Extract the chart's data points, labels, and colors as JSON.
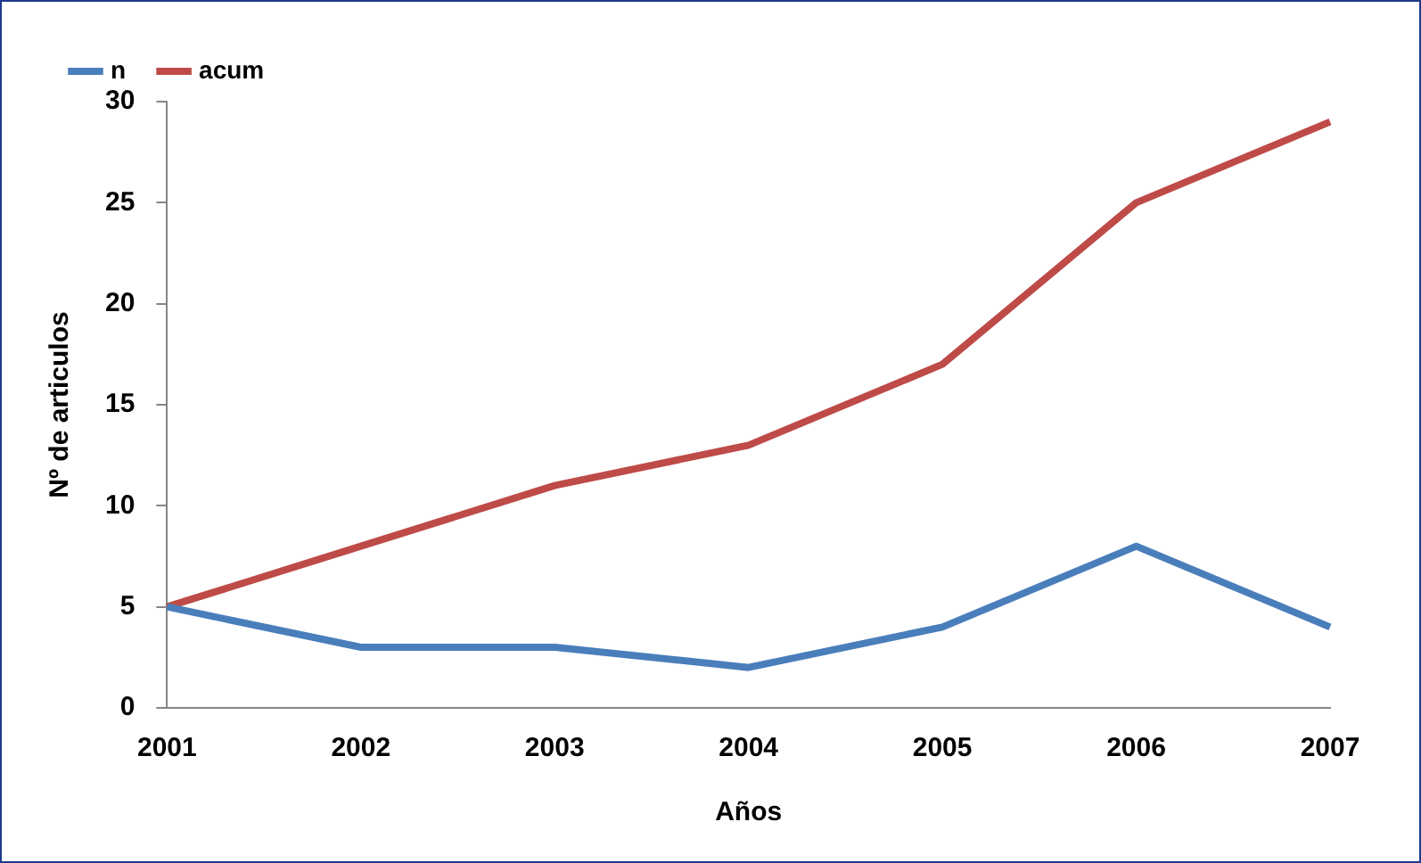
{
  "chart_data": {
    "type": "line",
    "xlabel": "Años",
    "ylabel": "Nº de articulos",
    "categories": [
      "2001",
      "2002",
      "2003",
      "2004",
      "2005",
      "2006",
      "2007"
    ],
    "series": [
      {
        "name": "n",
        "color": "#4a7ebb",
        "values": [
          5,
          3,
          3,
          2,
          4,
          8,
          4
        ]
      },
      {
        "name": "acum",
        "color": "#be4b48",
        "values": [
          5,
          8,
          11,
          13,
          17,
          25,
          29
        ]
      }
    ],
    "ylim": [
      0,
      30
    ],
    "yticks": [
      0,
      5,
      10,
      15,
      20,
      25,
      30
    ],
    "grid": false,
    "legend": "top left",
    "marker": "none",
    "line_style": "solid"
  }
}
